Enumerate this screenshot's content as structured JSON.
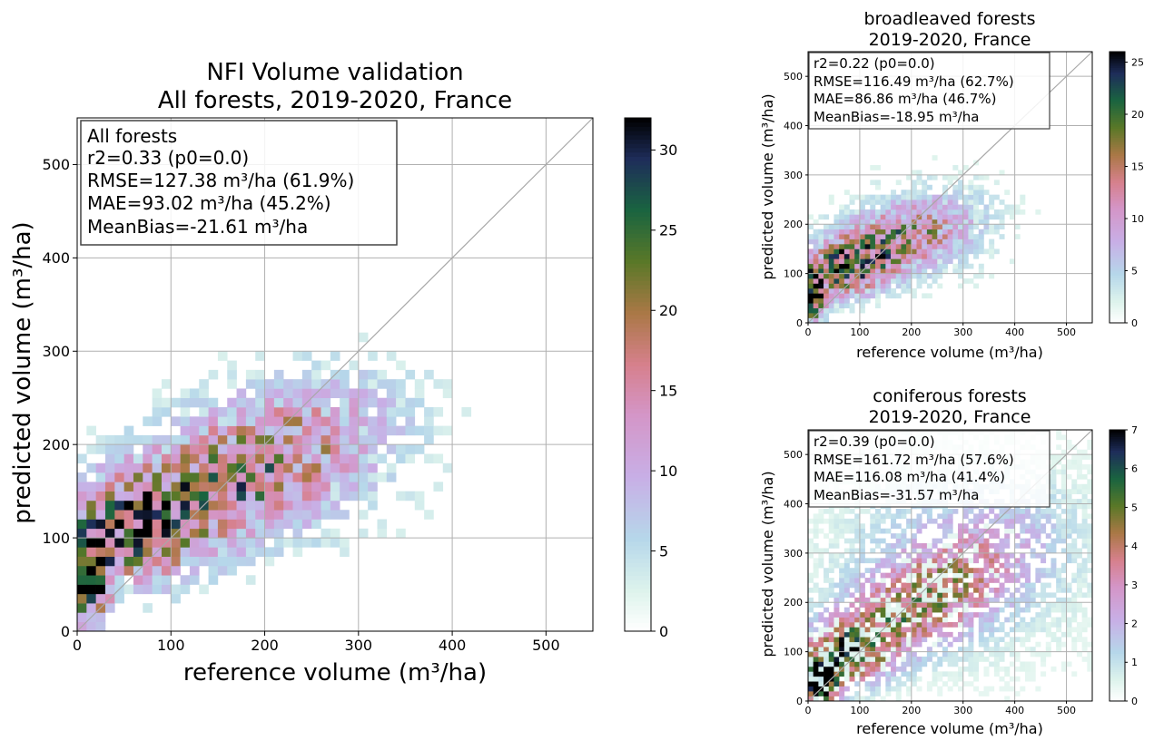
{
  "chart_data": [
    {
      "type": "heatmap",
      "title_lines": [
        "NFI Volume validation",
        "All forests, 2019-2020, France"
      ],
      "xlabel": "reference volume (m³/ha)",
      "ylabel": "predicted volume (m³/ha)",
      "xlim": [
        0,
        550
      ],
      "ylim": [
        0,
        550
      ],
      "xticks": [
        0,
        100,
        200,
        300,
        400,
        500
      ],
      "yticks": [
        0,
        100,
        200,
        300,
        400,
        500
      ],
      "grid": true,
      "identity_line": true,
      "bin_size": 10,
      "colormap": "cubehelix_r",
      "colorbar_range": [
        0,
        32
      ],
      "colorbar_ticks": [
        0,
        5,
        10,
        15,
        20,
        25,
        30
      ],
      "stats_lines": [
        "All forests",
        "r2=0.33 (p0=0.0)",
        "RMSE=127.38 m³/ha (61.9%)",
        "MAE=93.02 m³/ha (45.2%)",
        "MeanBias=-21.61 m³/ha"
      ],
      "density_model": {
        "core_center": [
          170,
          165
        ],
        "core_width": [
          95,
          48
        ],
        "core_tilt": 0.35,
        "core_peak": 17,
        "near_zero_center": [
          10,
          60
        ],
        "near_zero_width": [
          15,
          35
        ],
        "near_zero_peak": 30,
        "wide_center": [
          230,
          190
        ],
        "wide_width": [
          160,
          110
        ],
        "wide_peak": 3.5,
        "secondary_center": [
          60,
          110
        ],
        "secondary_width": [
          45,
          40
        ],
        "secondary_peak": 14
      }
    },
    {
      "type": "heatmap",
      "title_lines": [
        "broadleaved forests",
        "2019-2020, France"
      ],
      "xlabel": "reference volume (m³/ha)",
      "ylabel": "predicted volume (m³/ha)",
      "xlim": [
        0,
        550
      ],
      "ylim": [
        0,
        550
      ],
      "xticks": [
        0,
        100,
        200,
        300,
        400,
        500
      ],
      "yticks": [
        0,
        100,
        200,
        300,
        400,
        500
      ],
      "grid": true,
      "identity_line": true,
      "bin_size": 10,
      "colormap": "cubehelix_r",
      "colorbar_range": [
        0,
        26
      ],
      "colorbar_ticks": [
        0,
        5,
        10,
        15,
        20,
        25
      ],
      "stats_lines": [
        "r2=0.22 (p0=0.0)",
        "RMSE=116.49 m³/ha (62.7%)",
        "MAE=86.86 m³/ha (46.7%)",
        "MeanBias=-18.95 m³/ha"
      ],
      "density_model": {
        "core_center": [
          160,
          160
        ],
        "core_width": [
          90,
          45
        ],
        "core_tilt": 0.3,
        "core_peak": 14,
        "near_zero_center": [
          10,
          55
        ],
        "near_zero_width": [
          15,
          35
        ],
        "near_zero_peak": 25,
        "wide_center": [
          230,
          190
        ],
        "wide_width": [
          160,
          110
        ],
        "wide_peak": 3,
        "secondary_center": [
          70,
          110
        ],
        "secondary_width": [
          45,
          40
        ],
        "secondary_peak": 12
      }
    },
    {
      "type": "heatmap",
      "title_lines": [
        "coniferous forests",
        "2019-2020, France"
      ],
      "xlabel": "reference volume (m³/ha)",
      "ylabel": "predicted volume (m³/ha)",
      "xlim": [
        0,
        550
      ],
      "ylim": [
        0,
        550
      ],
      "xticks": [
        0,
        100,
        200,
        300,
        400,
        500
      ],
      "yticks": [
        0,
        100,
        200,
        300,
        400,
        500
      ],
      "grid": true,
      "identity_line": true,
      "bin_size": 10,
      "colormap": "cubehelix_r",
      "colorbar_range": [
        0,
        7
      ],
      "colorbar_ticks": [
        0,
        1,
        2,
        3,
        4,
        5,
        6,
        7
      ],
      "stats_lines": [
        "r2=0.39 (p0=0.0)",
        "RMSE=161.72 m³/ha (57.6%)",
        "MAE=116.08 m³/ha (41.4%)",
        "MeanBias=-31.57 m³/ha"
      ],
      "density_model": {
        "core_center": [
          200,
          190
        ],
        "core_width": [
          130,
          70
        ],
        "core_tilt": 0.5,
        "core_peak": 3,
        "near_zero_center": [
          20,
          40
        ],
        "near_zero_width": [
          25,
          35
        ],
        "near_zero_peak": 6,
        "wide_center": [
          300,
          300
        ],
        "wide_width": [
          200,
          160
        ],
        "wide_peak": 1.2,
        "secondary_center": [
          80,
          100
        ],
        "secondary_width": [
          50,
          40
        ],
        "secondary_peak": 3
      }
    }
  ]
}
